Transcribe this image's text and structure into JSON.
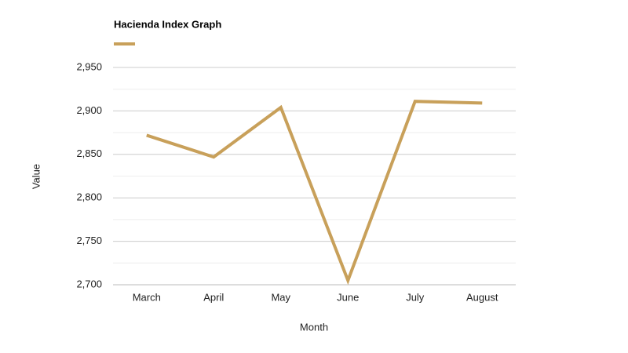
{
  "chart_data": {
    "type": "line",
    "x_label": "Month",
    "y_label": "Value",
    "categories": [
      "March",
      "April",
      "May",
      "June",
      "July",
      "August"
    ],
    "series": [
      {
        "name": "Hacienda Index Graph",
        "color": "#c8a05a",
        "values": [
          2872,
          2847,
          2904,
          2705,
          2911,
          2909
        ]
      }
    ],
    "ylim": [
      2700,
      2950
    ],
    "yticks": [
      {
        "value": 2700,
        "label": "2,700"
      },
      {
        "value": 2750,
        "label": "2,750"
      },
      {
        "value": 2800,
        "label": "2,800"
      },
      {
        "value": 2850,
        "label": "2,850"
      },
      {
        "value": 2900,
        "label": "2,900"
      },
      {
        "value": 2950,
        "label": "2,950"
      }
    ],
    "grid": true,
    "minor_grid": true,
    "legend": "top-left"
  }
}
